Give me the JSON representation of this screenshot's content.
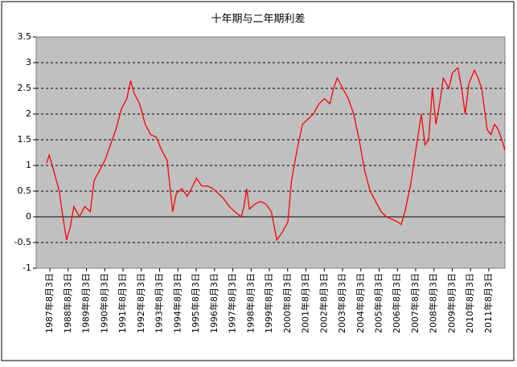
{
  "chart_data": {
    "type": "line",
    "title": "十年期与二年期利差",
    "x": [
      1987.41,
      1987.55,
      1987.8,
      1988.1,
      1988.3,
      1988.5,
      1988.7,
      1988.9,
      1989.2,
      1989.5,
      1989.8,
      1990.0,
      1990.3,
      1990.6,
      1990.9,
      1991.2,
      1991.5,
      1991.8,
      1992.0,
      1992.2,
      1992.5,
      1992.8,
      1993.1,
      1993.4,
      1993.7,
      1994.0,
      1994.3,
      1994.5,
      1994.8,
      1995.1,
      1995.4,
      1995.6,
      1995.9,
      1996.2,
      1996.5,
      1996.8,
      1997.1,
      1997.4,
      1997.7,
      1998.05,
      1998.2,
      1998.35,
      1998.5,
      1998.8,
      1999.1,
      1999.4,
      1999.7,
      2000.0,
      2000.3,
      2000.6,
      2000.8,
      2001.1,
      2001.4,
      2001.7,
      2002.0,
      2002.3,
      2002.6,
      2002.9,
      2003.1,
      2003.3,
      2003.6,
      2003.9,
      2004.2,
      2004.5,
      2004.8,
      2005.1,
      2005.4,
      2005.7,
      2006.0,
      2006.3,
      2006.6,
      2006.8,
      2007.0,
      2007.3,
      2007.6,
      2007.9,
      2008.1,
      2008.3,
      2008.5,
      2008.7,
      2008.9,
      2009.1,
      2009.4,
      2009.6,
      2009.9,
      2010.1,
      2010.3,
      2010.5,
      2010.8,
      2011.0,
      2011.2,
      2011.5,
      2011.7,
      2011.9,
      2012.1,
      2012.3,
      2012.47
    ],
    "values": [
      1.05,
      1.2,
      0.9,
      0.5,
      0.0,
      -0.45,
      -0.2,
      0.2,
      0.0,
      0.2,
      0.1,
      0.7,
      0.9,
      1.1,
      1.4,
      1.7,
      2.1,
      2.3,
      2.65,
      2.4,
      2.2,
      1.8,
      1.6,
      1.55,
      1.3,
      1.1,
      0.1,
      0.45,
      0.55,
      0.4,
      0.6,
      0.75,
      0.6,
      0.6,
      0.55,
      0.45,
      0.35,
      0.2,
      0.1,
      0.0,
      0.2,
      0.55,
      0.15,
      0.25,
      0.3,
      0.25,
      0.1,
      -0.45,
      -0.3,
      -0.1,
      0.7,
      1.3,
      1.8,
      1.9,
      2.0,
      2.2,
      2.3,
      2.2,
      2.5,
      2.7,
      2.5,
      2.3,
      2.0,
      1.5,
      0.9,
      0.5,
      0.3,
      0.1,
      0.0,
      -0.05,
      -0.1,
      -0.15,
      0.1,
      0.6,
      1.3,
      2.0,
      1.4,
      1.5,
      2.5,
      1.8,
      2.2,
      2.7,
      2.5,
      2.8,
      2.9,
      2.5,
      2.0,
      2.6,
      2.85,
      2.7,
      2.5,
      1.7,
      1.6,
      1.8,
      1.7,
      1.5,
      1.3
    ],
    "color": "#ff0000",
    "xlim": [
      1986.84,
      2012.47
    ],
    "xticks": [
      {
        "value": 1987.59,
        "label": "1987年8月3日"
      },
      {
        "value": 1988.59,
        "label": "1988年8月3日"
      },
      {
        "value": 1989.59,
        "label": "1989年8月3日"
      },
      {
        "value": 1990.59,
        "label": "1990年8月3日"
      },
      {
        "value": 1991.59,
        "label": "1991年8月3日"
      },
      {
        "value": 1992.59,
        "label": "1992年8月3日"
      },
      {
        "value": 1993.59,
        "label": "1993年8月3日"
      },
      {
        "value": 1994.59,
        "label": "1994年8月3日"
      },
      {
        "value": 1995.59,
        "label": "1995年8月3日"
      },
      {
        "value": 1996.59,
        "label": "1996年8月3日"
      },
      {
        "value": 1997.59,
        "label": "1997年8月3日"
      },
      {
        "value": 1998.59,
        "label": "1998年8月3日"
      },
      {
        "value": 1999.59,
        "label": "1999年8月3日"
      },
      {
        "value": 2000.59,
        "label": "2000年8月3日"
      },
      {
        "value": 2001.59,
        "label": "2001年8月3日"
      },
      {
        "value": 2002.59,
        "label": "2002年8月3日"
      },
      {
        "value": 2003.59,
        "label": "2003年8月3日"
      },
      {
        "value": 2004.59,
        "label": "2004年8月3日"
      },
      {
        "value": 2005.59,
        "label": "2005年8月3日"
      },
      {
        "value": 2006.59,
        "label": "2006年8月3日"
      },
      {
        "value": 2007.59,
        "label": "2007年8月3日"
      },
      {
        "value": 2008.59,
        "label": "2008年8月3日"
      },
      {
        "value": 2009.59,
        "label": "2009年8月3日"
      },
      {
        "value": 2010.59,
        "label": "2010年8月3日"
      },
      {
        "value": 2011.59,
        "label": "2011年8月3日"
      }
    ],
    "ylim": [
      -1,
      3.5
    ],
    "yticks": [
      -1,
      -0.5,
      0,
      0.5,
      1,
      1.5,
      2,
      2.5,
      3,
      3.5
    ],
    "grid": true
  }
}
